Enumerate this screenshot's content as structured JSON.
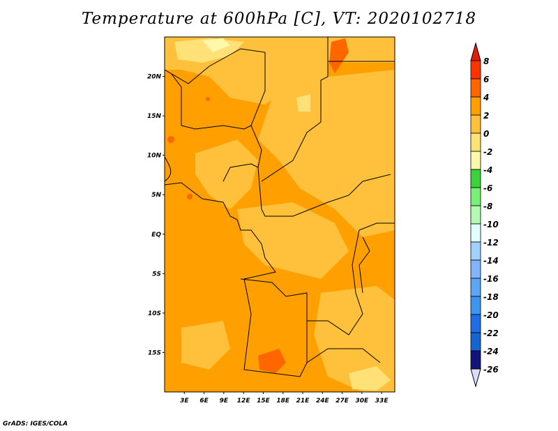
{
  "title": "Temperature at 600hPa [C], VT: 2020102718",
  "credit": "GrADS: IGES/COLA",
  "map": {
    "lon_range": [
      0,
      35
    ],
    "lat_range": [
      -20,
      25
    ],
    "lat_labels": [
      {
        "lat": 20,
        "text": "20N"
      },
      {
        "lat": 15,
        "text": "15N"
      },
      {
        "lat": 10,
        "text": "10N"
      },
      {
        "lat": 5,
        "text": "5N"
      },
      {
        "lat": 0,
        "text": "EQ"
      },
      {
        "lat": -5,
        "text": "5S"
      },
      {
        "lat": -10,
        "text": "10S"
      },
      {
        "lat": -15,
        "text": "15S"
      }
    ],
    "lon_labels": [
      {
        "lon": 3,
        "text": "3E"
      },
      {
        "lon": 6,
        "text": "6E"
      },
      {
        "lon": 9,
        "text": "9E"
      },
      {
        "lon": 12,
        "text": "12E"
      },
      {
        "lon": 15,
        "text": "15E"
      },
      {
        "lon": 18,
        "text": "18E"
      },
      {
        "lon": 21,
        "text": "21E"
      },
      {
        "lon": 24,
        "text": "24E"
      },
      {
        "lon": 27,
        "text": "27E"
      },
      {
        "lon": 30,
        "text": "30E"
      },
      {
        "lon": 33,
        "text": "33E"
      }
    ]
  },
  "colorbar": {
    "labels": [
      "8",
      "6",
      "4",
      "2",
      "0",
      "-2",
      "-4",
      "-6",
      "-8",
      "-10",
      "-12",
      "-14",
      "-16",
      "-18",
      "-20",
      "-22",
      "-24",
      "-26"
    ],
    "top_color": "#e01e0a",
    "bottom_color": "#dcdcff",
    "colors": [
      "#ff3300",
      "#ff6600",
      "#ffa000",
      "#ffc03c",
      "#ffe178",
      "#fff7aa",
      "#3cd23c",
      "#78f078",
      "#b4f8b4",
      "#e1ffff",
      "#a0d2ff",
      "#82b4ff",
      "#5fa5f5",
      "#3c96f0",
      "#1e6ee6",
      "#1464d2",
      "#141478"
    ]
  }
}
